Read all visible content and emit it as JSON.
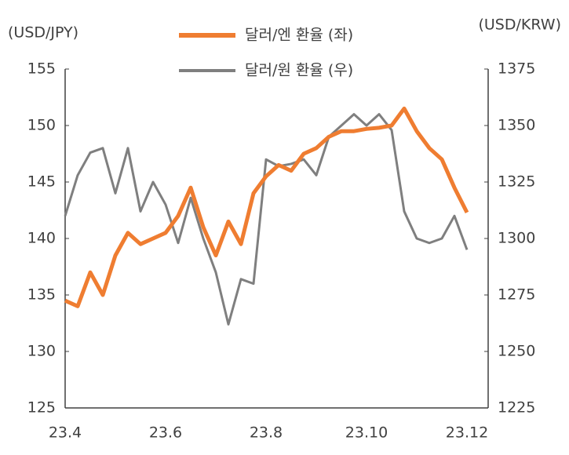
{
  "chart_data": {
    "type": "line",
    "y_axis_label": "(USD/JPY)",
    "y2_axis_label": "(USD/KRW)",
    "categories": [
      "23.4",
      null,
      null,
      null,
      null,
      null,
      null,
      null,
      "23.6",
      null,
      null,
      null,
      null,
      null,
      null,
      null,
      "23.8",
      null,
      null,
      null,
      null,
      null,
      null,
      null,
      "23.10",
      null,
      null,
      null,
      null,
      null,
      null,
      null,
      "23.12"
    ],
    "series": [
      {
        "name": "달러/엔 환율 (좌)",
        "color": "#ef7d31",
        "axis": "y",
        "values": [
          134.5,
          134,
          137,
          135,
          138.5,
          140.5,
          139.5,
          140,
          140.5,
          142,
          144.5,
          141,
          138.5,
          141.5,
          139.5,
          144,
          145.5,
          146.5,
          146,
          147.5,
          148,
          149,
          149.5,
          149.5,
          149.7,
          149.8,
          150,
          151.5,
          149.5,
          148,
          147,
          144.5,
          142.3
        ]
      },
      {
        "name": "달러/원 환율 (우)",
        "color": "#7f7f7f",
        "axis": "y2",
        "values": [
          1310,
          1328,
          1338,
          1340,
          1320,
          1340,
          1312,
          1325,
          1315,
          1298,
          1318,
          1300,
          1285,
          1262,
          1282,
          1280,
          1335,
          1332,
          1333,
          1335,
          1328,
          1345,
          1350,
          1355,
          1350,
          1355,
          1348,
          1312,
          1300,
          1298,
          1300,
          1310,
          1295
        ]
      }
    ],
    "ylim": [
      125,
      155
    ],
    "yticks": [
      125,
      130,
      135,
      140,
      145,
      150,
      155
    ],
    "y2lim": [
      1225,
      1375
    ],
    "y2ticks": [
      1225,
      1250,
      1275,
      1300,
      1325,
      1350,
      1375
    ]
  }
}
